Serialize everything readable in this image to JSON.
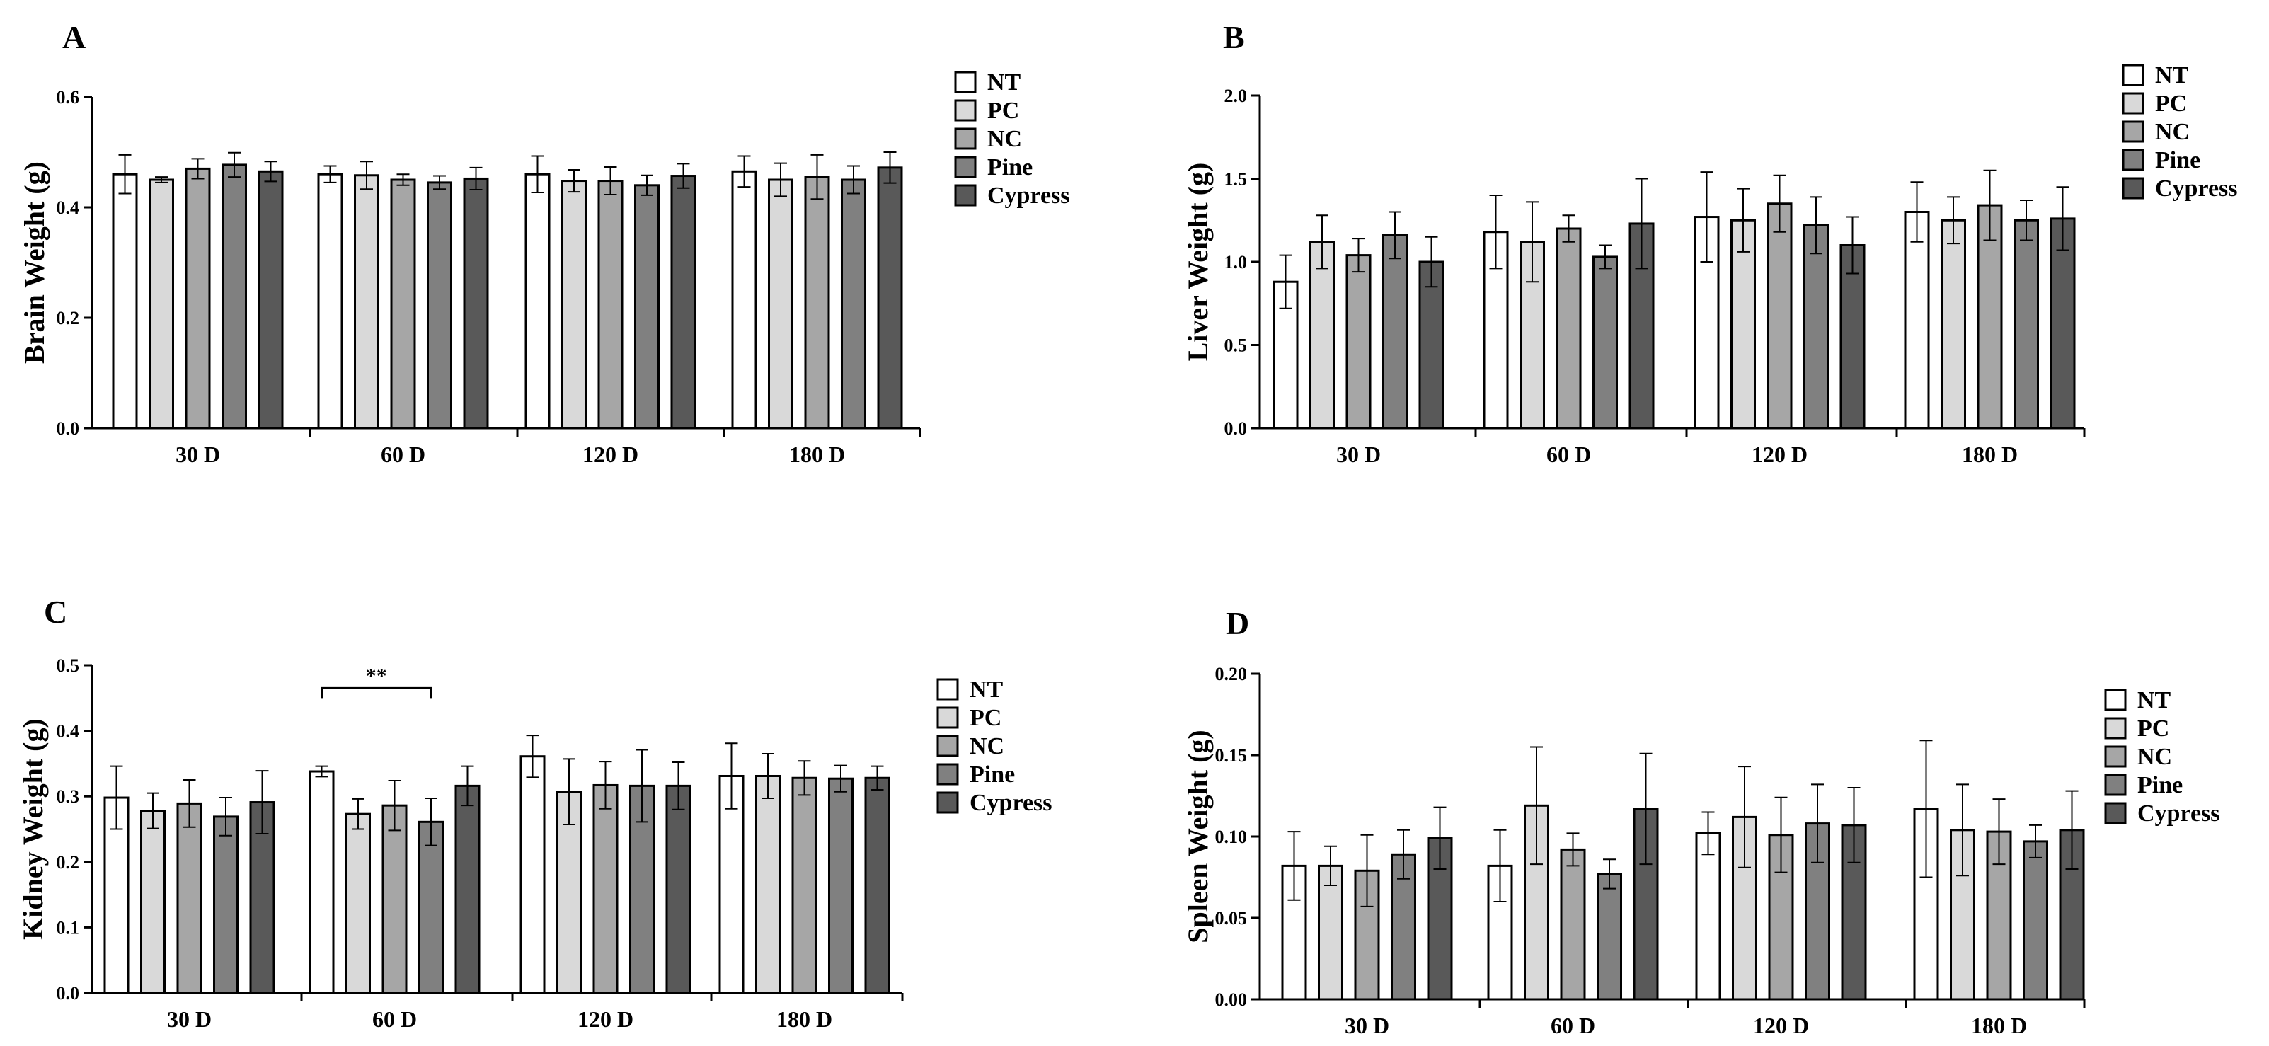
{
  "groups": [
    {
      "name": "NT",
      "color": "#ffffff"
    },
    {
      "name": "PC",
      "color": "#d9d9d9"
    },
    {
      "name": "NC",
      "color": "#a6a6a6"
    },
    {
      "name": "Pine",
      "color": "#808080"
    },
    {
      "name": "Cypress",
      "color": "#595959"
    }
  ],
  "chart_data": [
    {
      "panel": "A",
      "type": "bar",
      "ylabel": "Brain Weight (g)",
      "categories": [
        "30 D",
        "60 D",
        "120 D",
        "180 D"
      ],
      "ylim": [
        0,
        0.6
      ],
      "yticks": [
        "0.0",
        "0.2",
        "0.4",
        "0.6"
      ],
      "series": [
        {
          "name": "NT",
          "values": [
            0.46,
            0.46,
            0.46,
            0.465
          ],
          "errors": [
            0.035,
            0.015,
            0.033,
            0.028
          ]
        },
        {
          "name": "PC",
          "values": [
            0.45,
            0.458,
            0.448,
            0.45
          ],
          "errors": [
            0.005,
            0.025,
            0.02,
            0.03
          ]
        },
        {
          "name": "NC",
          "values": [
            0.47,
            0.45,
            0.448,
            0.455
          ],
          "errors": [
            0.018,
            0.01,
            0.025,
            0.04
          ]
        },
        {
          "name": "Pine",
          "values": [
            0.477,
            0.445,
            0.44,
            0.45
          ],
          "errors": [
            0.022,
            0.012,
            0.018,
            0.025
          ]
        },
        {
          "name": "Cypress",
          "values": [
            0.465,
            0.452,
            0.457,
            0.472
          ],
          "errors": [
            0.018,
            0.02,
            0.022,
            0.028
          ]
        }
      ]
    },
    {
      "panel": "B",
      "type": "bar",
      "ylabel": "Liver Weight (g)",
      "categories": [
        "30 D",
        "60 D",
        "120 D",
        "180 D"
      ],
      "ylim": [
        0,
        2.0
      ],
      "yticks": [
        "0.0",
        "0.5",
        "1.0",
        "1.5",
        "2.0"
      ],
      "series": [
        {
          "name": "NT",
          "values": [
            0.88,
            1.18,
            1.27,
            1.3
          ],
          "errors": [
            0.16,
            0.22,
            0.27,
            0.18
          ]
        },
        {
          "name": "PC",
          "values": [
            1.12,
            1.12,
            1.25,
            1.25
          ],
          "errors": [
            0.16,
            0.24,
            0.19,
            0.14
          ]
        },
        {
          "name": "NC",
          "values": [
            1.04,
            1.2,
            1.35,
            1.34
          ],
          "errors": [
            0.1,
            0.08,
            0.17,
            0.21
          ]
        },
        {
          "name": "Pine",
          "values": [
            1.16,
            1.03,
            1.22,
            1.25
          ],
          "errors": [
            0.14,
            0.07,
            0.17,
            0.12
          ]
        },
        {
          "name": "Cypress",
          "values": [
            1.0,
            1.23,
            1.1,
            1.26
          ],
          "errors": [
            0.15,
            0.27,
            0.17,
            0.19
          ]
        }
      ]
    },
    {
      "panel": "C",
      "type": "bar",
      "ylabel": "Kidney Weight (g)",
      "categories": [
        "30 D",
        "60 D",
        "120 D",
        "180 D"
      ],
      "ylim": [
        0,
        0.5
      ],
      "yticks": [
        "0.0",
        "0.1",
        "0.2",
        "0.3",
        "0.4",
        "0.5"
      ],
      "annotation": {
        "text": "**",
        "category": "60 D",
        "from": "NT",
        "to": "Pine",
        "y": 0.465
      },
      "series": [
        {
          "name": "NT",
          "values": [
            0.298,
            0.338,
            0.361,
            0.331
          ],
          "errors": [
            0.048,
            0.008,
            0.032,
            0.05
          ]
        },
        {
          "name": "PC",
          "values": [
            0.278,
            0.273,
            0.307,
            0.331
          ],
          "errors": [
            0.027,
            0.023,
            0.05,
            0.034
          ]
        },
        {
          "name": "NC",
          "values": [
            0.289,
            0.286,
            0.317,
            0.328
          ],
          "errors": [
            0.036,
            0.038,
            0.036,
            0.026
          ]
        },
        {
          "name": "Pine",
          "values": [
            0.269,
            0.261,
            0.316,
            0.327
          ],
          "errors": [
            0.029,
            0.036,
            0.055,
            0.02
          ]
        },
        {
          "name": "Cypress",
          "values": [
            0.291,
            0.316,
            0.316,
            0.328
          ],
          "errors": [
            0.048,
            0.03,
            0.036,
            0.018
          ]
        }
      ]
    },
    {
      "panel": "D",
      "type": "bar",
      "ylabel": "Spleen Weight (g)",
      "categories": [
        "30 D",
        "60 D",
        "120 D",
        "180 D"
      ],
      "ylim": [
        0,
        0.2
      ],
      "yticks": [
        "0.00",
        "0.05",
        "0.10",
        "0.15",
        "0.20"
      ],
      "series": [
        {
          "name": "NT",
          "values": [
            0.082,
            0.082,
            0.102,
            0.117
          ],
          "errors": [
            0.021,
            0.022,
            0.013,
            0.042
          ]
        },
        {
          "name": "PC",
          "values": [
            0.082,
            0.119,
            0.112,
            0.104
          ],
          "errors": [
            0.012,
            0.036,
            0.031,
            0.028
          ]
        },
        {
          "name": "NC",
          "values": [
            0.079,
            0.092,
            0.101,
            0.103
          ],
          "errors": [
            0.022,
            0.01,
            0.023,
            0.02
          ]
        },
        {
          "name": "Pine",
          "values": [
            0.089,
            0.077,
            0.108,
            0.097
          ],
          "errors": [
            0.015,
            0.009,
            0.024,
            0.01
          ]
        },
        {
          "name": "Cypress",
          "values": [
            0.099,
            0.117,
            0.107,
            0.104
          ],
          "errors": [
            0.019,
            0.034,
            0.023,
            0.024
          ]
        }
      ]
    }
  ]
}
